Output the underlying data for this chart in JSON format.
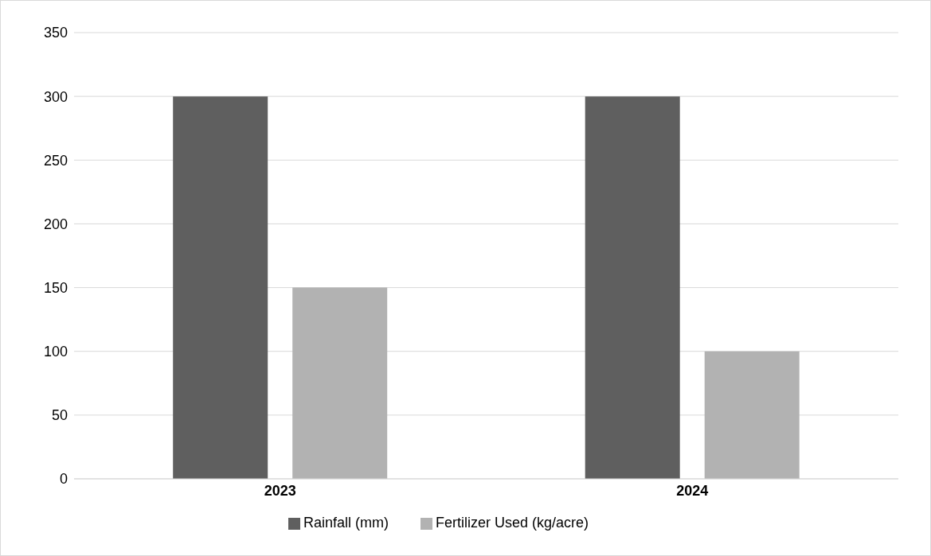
{
  "chart_data": {
    "type": "bar",
    "categories": [
      "2023",
      "2024"
    ],
    "series": [
      {
        "name": "Rainfall (mm)",
        "color": "#5f5f5f",
        "values": [
          300,
          300
        ]
      },
      {
        "name": "Fertilizer Used (kg/acre)",
        "color": "#b2b2b2",
        "values": [
          150,
          100
        ]
      }
    ],
    "ylim": [
      0,
      350
    ],
    "yticks": [
      0,
      50,
      100,
      150,
      200,
      250,
      300,
      350
    ],
    "grid": "y",
    "legend": "bottom"
  }
}
